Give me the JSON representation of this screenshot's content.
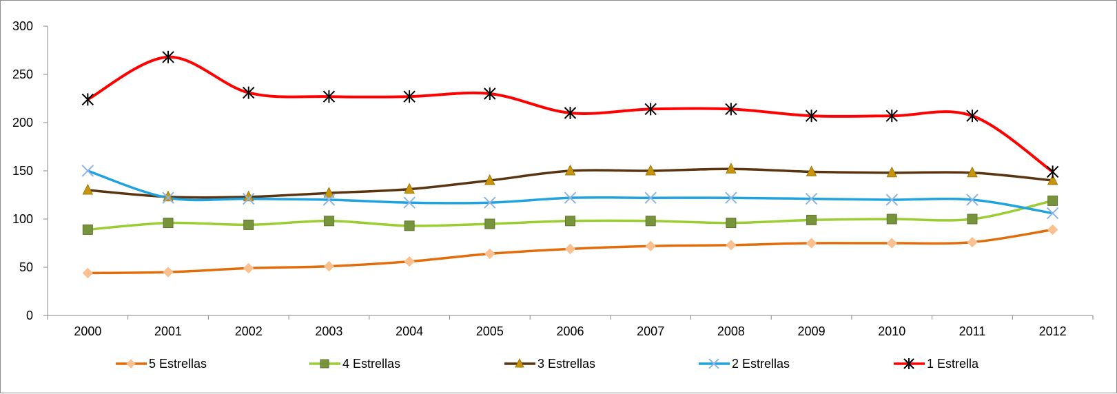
{
  "chart_data": {
    "type": "line",
    "title": "",
    "xlabel": "",
    "ylabel": "",
    "ylim": [
      0,
      300
    ],
    "yticks": [
      0,
      50,
      100,
      150,
      200,
      250,
      300
    ],
    "categories": [
      "2000",
      "2001",
      "2002",
      "2003",
      "2004",
      "2005",
      "2006",
      "2007",
      "2008",
      "2009",
      "2010",
      "2011",
      "2012"
    ],
    "grid": false,
    "legend_position": "bottom",
    "series": [
      {
        "name": "5 Estrellas",
        "color": "#e36c0a",
        "marker": "diamond",
        "marker_color": "#fac090",
        "values": [
          44,
          45,
          49,
          51,
          56,
          64,
          69,
          72,
          73,
          75,
          75,
          76,
          89
        ]
      },
      {
        "name": "4 Estrellas",
        "color": "#9acd32",
        "marker": "square",
        "marker_color": "#77933c",
        "values": [
          89,
          96,
          94,
          98,
          93,
          95,
          98,
          98,
          96,
          99,
          100,
          100,
          119
        ]
      },
      {
        "name": "3 Estrellas",
        "color": "#5a3410",
        "marker": "triangle",
        "marker_color": "#c8960c",
        "values": [
          130,
          123,
          123,
          127,
          131,
          140,
          150,
          150,
          152,
          149,
          148,
          148,
          140
        ]
      },
      {
        "name": "2 Estrellas",
        "color": "#1fa3e0",
        "marker": "x",
        "marker_color": "#8eb4e3",
        "values": [
          150,
          122,
          121,
          120,
          117,
          117,
          122,
          122,
          122,
          121,
          120,
          120,
          106
        ]
      },
      {
        "name": "1 Estrella",
        "color": "#ff0000",
        "marker": "asterisk",
        "marker_color": "#000000",
        "values": [
          224,
          268,
          231,
          227,
          227,
          230,
          210,
          214,
          214,
          207,
          207,
          207,
          149
        ]
      }
    ]
  }
}
